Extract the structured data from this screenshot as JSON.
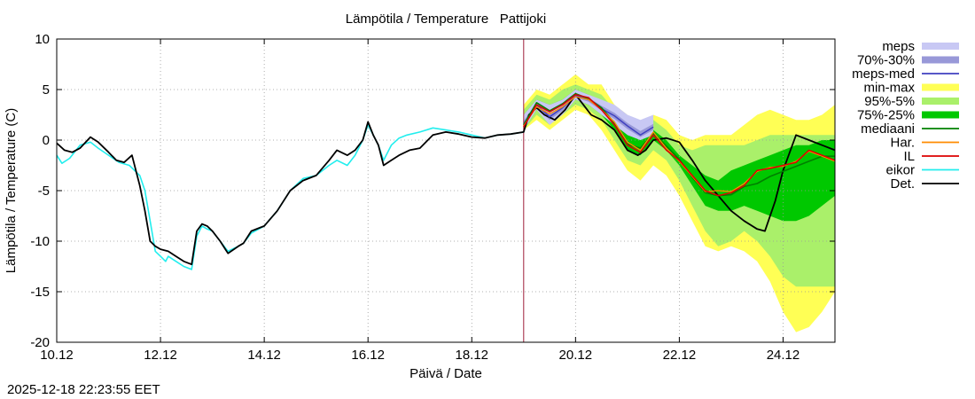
{
  "timestamp": "2025-12-18 22:23:55 EET",
  "chart_data": {
    "type": "line",
    "title": "Lämpötila / Temperature   Pattijoki",
    "xlabel": "Päivä / Date",
    "ylabel": "Lämpötila / Temperature (C)",
    "xlim": [
      0,
      15
    ],
    "ylim": [
      -20,
      10
    ],
    "grid": true,
    "legend_position": "right",
    "x_unit": "days since 10.12 00:00",
    "forecast_start_x": 9.0,
    "x_ticks": [
      {
        "x": 0,
        "label": "10.12"
      },
      {
        "x": 2,
        "label": "12.12"
      },
      {
        "x": 4,
        "label": "14.12"
      },
      {
        "x": 6,
        "label": "16.12"
      },
      {
        "x": 8,
        "label": "18.12"
      },
      {
        "x": 10,
        "label": "20.12"
      },
      {
        "x": 12,
        "label": "22.12"
      },
      {
        "x": 14,
        "label": "24.12"
      }
    ],
    "y_ticks": [
      {
        "y": 10,
        "label": "10"
      },
      {
        "y": 5,
        "label": "5"
      },
      {
        "y": 0,
        "label": "0"
      },
      {
        "y": -5,
        "label": "-5"
      },
      {
        "y": -10,
        "label": "-10"
      },
      {
        "y": -15,
        "label": "-15"
      },
      {
        "y": -20,
        "label": "-20"
      }
    ],
    "legend": [
      {
        "label": "meps",
        "color": "#c8c8f4",
        "kind": "band"
      },
      {
        "label": "70%-30%",
        "color": "#9898d8",
        "kind": "band"
      },
      {
        "label": "meps-med",
        "color": "#4040c0",
        "kind": "line"
      },
      {
        "label": "min-max",
        "color": "#ffff55",
        "kind": "band"
      },
      {
        "label": "95%-5%",
        "color": "#aaf06a",
        "kind": "band"
      },
      {
        "label": "75%-25%",
        "color": "#00c800",
        "kind": "band"
      },
      {
        "label": "mediaani",
        "color": "#008000",
        "kind": "line"
      },
      {
        "label": "Har.",
        "color": "#ff8c00",
        "kind": "line"
      },
      {
        "label": "IL",
        "color": "#dd0000",
        "kind": "line"
      },
      {
        "label": "eikor",
        "color": "#22eeee",
        "kind": "line"
      },
      {
        "label": "Det.",
        "color": "#000000",
        "kind": "line"
      }
    ],
    "bands": [
      {
        "name": "min-max",
        "color": "#ffff55",
        "x": [
          9.0,
          9.25,
          9.5,
          9.75,
          10.0,
          10.25,
          10.5,
          10.75,
          11.0,
          11.25,
          11.5,
          11.75,
          12.0,
          12.25,
          12.5,
          12.75,
          13.0,
          13.25,
          13.5,
          13.75,
          14.0,
          14.25,
          14.5,
          14.75,
          15.0
        ],
        "low": [
          1.0,
          2.0,
          1.0,
          2.0,
          3.0,
          2.5,
          1.0,
          -1.0,
          -3.0,
          -4.0,
          -2.5,
          -3.5,
          -5.5,
          -8.0,
          -10.5,
          -11.0,
          -10.5,
          -11.0,
          -12.0,
          -14.0,
          -17.0,
          -19.0,
          -18.5,
          -17.0,
          -15.0
        ],
        "high": [
          3.5,
          5.0,
          4.5,
          5.5,
          6.5,
          5.5,
          5.5,
          3.5,
          2.5,
          1.0,
          2.5,
          2.0,
          0.5,
          0.0,
          0.5,
          0.5,
          0.5,
          1.5,
          2.5,
          3.0,
          2.5,
          2.0,
          2.0,
          2.5,
          3.5
        ]
      },
      {
        "name": "95%-5%",
        "color": "#aaf06a",
        "x": [
          9.0,
          9.25,
          9.5,
          9.75,
          10.0,
          10.25,
          10.5,
          10.75,
          11.0,
          11.25,
          11.5,
          11.75,
          12.0,
          12.25,
          12.5,
          12.75,
          13.0,
          13.25,
          13.5,
          13.75,
          14.0,
          14.25,
          14.5,
          14.75,
          15.0
        ],
        "low": [
          1.0,
          2.5,
          1.5,
          2.5,
          3.5,
          3.0,
          2.0,
          0.0,
          -2.0,
          -2.5,
          -1.0,
          -2.0,
          -4.0,
          -6.5,
          -9.0,
          -10.5,
          -10.0,
          -9.0,
          -10.0,
          -11.5,
          -13.5,
          -14.5,
          -14.5,
          -14.5,
          -14.5
        ],
        "high": [
          3.0,
          4.5,
          4.0,
          5.0,
          5.5,
          5.0,
          4.5,
          3.0,
          1.5,
          0.5,
          2.0,
          1.0,
          -0.5,
          -1.0,
          -0.5,
          -0.5,
          -0.5,
          -0.5,
          0.0,
          0.5,
          0.5,
          0.5,
          0.5,
          0.5,
          0.5
        ]
      },
      {
        "name": "75%-25%",
        "color": "#00c800",
        "x": [
          9.0,
          9.25,
          9.5,
          9.75,
          10.0,
          10.25,
          10.5,
          10.75,
          11.0,
          11.25,
          11.5,
          11.75,
          12.0,
          12.25,
          12.5,
          12.75,
          13.0,
          13.25,
          13.5,
          13.75,
          14.0,
          14.25,
          14.5,
          14.75,
          15.0
        ],
        "low": [
          1.0,
          3.0,
          2.0,
          3.0,
          4.0,
          3.5,
          2.5,
          1.0,
          -1.0,
          -1.5,
          0.0,
          -1.0,
          -2.5,
          -4.5,
          -6.5,
          -7.0,
          -7.0,
          -6.5,
          -7.0,
          -7.5,
          -8.0,
          -8.0,
          -7.5,
          -6.5,
          -5.5
        ],
        "high": [
          2.5,
          4.0,
          3.5,
          4.0,
          5.0,
          4.5,
          3.5,
          2.0,
          0.5,
          0.0,
          1.0,
          0.0,
          -1.5,
          -2.5,
          -3.5,
          -4.0,
          -3.0,
          -2.5,
          -2.0,
          -1.5,
          -1.0,
          -0.5,
          -0.5,
          0.0,
          0.0
        ]
      },
      {
        "name": "meps",
        "color": "#c8c8f4",
        "x": [
          9.0,
          9.25,
          9.5,
          9.75,
          10.0,
          10.25,
          10.5,
          10.75,
          11.0,
          11.25,
          11.5
        ],
        "low": [
          1.0,
          3.0,
          1.5,
          2.5,
          4.0,
          3.5,
          2.5,
          1.5,
          0.5,
          0.0,
          0.5
        ],
        "high": [
          2.5,
          4.0,
          3.5,
          4.0,
          5.0,
          4.5,
          4.0,
          3.5,
          2.5,
          2.0,
          2.5
        ]
      },
      {
        "name": "70%-30%",
        "color": "#9898d8",
        "x": [
          9.0,
          9.25,
          9.5,
          9.75,
          10.0,
          10.25,
          10.5,
          10.75,
          11.0,
          11.25,
          11.5
        ],
        "low": [
          1.3,
          3.2,
          2.0,
          2.9,
          4.2,
          3.8,
          2.9,
          2.1,
          1.1,
          0.3,
          1.0
        ],
        "high": [
          1.9,
          3.7,
          2.6,
          3.4,
          4.6,
          4.2,
          3.4,
          2.7,
          1.7,
          0.9,
          1.6
        ]
      }
    ],
    "series": [
      {
        "name": "eikor",
        "color": "#22eeee",
        "width": 1.6,
        "x": [
          0.0,
          0.1,
          0.25,
          0.45,
          0.65,
          0.8,
          1.0,
          1.2,
          1.4,
          1.6,
          1.7,
          1.8,
          1.9,
          2.0,
          2.1,
          2.15,
          2.3,
          2.45,
          2.6,
          2.7,
          2.8,
          2.9,
          3.0,
          3.15,
          3.3,
          3.5,
          3.6,
          3.75,
          4.0,
          4.25,
          4.5,
          4.75,
          5.0,
          5.25,
          5.4,
          5.6,
          5.75,
          5.9,
          6.0,
          6.1,
          6.2,
          6.3,
          6.45,
          6.6,
          6.75,
          7.0,
          7.25,
          7.5,
          7.75,
          8.0,
          8.25,
          8.5,
          8.75,
          9.0
        ],
        "y": [
          -1.5,
          -2.3,
          -1.8,
          -0.5,
          -0.2,
          -0.8,
          -1.5,
          -2.2,
          -2.5,
          -3.5,
          -5.0,
          -8.0,
          -11.0,
          -11.5,
          -12.0,
          -11.5,
          -12.0,
          -12.5,
          -12.8,
          -9.5,
          -8.5,
          -8.8,
          -9.0,
          -10.0,
          -11.0,
          -10.5,
          -10.2,
          -9.2,
          -8.5,
          -7.0,
          -5.0,
          -3.8,
          -3.5,
          -2.5,
          -2.0,
          -2.5,
          -1.5,
          0.0,
          1.5,
          0.5,
          -0.5,
          -2.0,
          -0.5,
          0.2,
          0.5,
          0.8,
          1.2,
          1.0,
          0.8,
          0.5,
          0.2,
          0.5,
          0.6,
          0.8
        ]
      },
      {
        "name": "Det.",
        "color": "#000000",
        "width": 1.8,
        "x": [
          0.0,
          0.15,
          0.3,
          0.45,
          0.65,
          0.8,
          1.0,
          1.15,
          1.3,
          1.45,
          1.6,
          1.7,
          1.8,
          1.9,
          2.0,
          2.15,
          2.3,
          2.45,
          2.6,
          2.7,
          2.8,
          2.9,
          3.0,
          3.15,
          3.3,
          3.5,
          3.6,
          3.75,
          4.0,
          4.25,
          4.5,
          4.75,
          5.0,
          5.25,
          5.4,
          5.6,
          5.75,
          5.9,
          6.0,
          6.1,
          6.2,
          6.3,
          6.45,
          6.6,
          6.8,
          7.0,
          7.25,
          7.5,
          7.75,
          8.0,
          8.25,
          8.5,
          8.75,
          9.0,
          9.1,
          9.25,
          9.4,
          9.6,
          9.8,
          10.0,
          10.15,
          10.3,
          10.5,
          10.75,
          11.0,
          11.2,
          11.35,
          11.5,
          11.75,
          12.0,
          12.25,
          12.5,
          12.75,
          13.0,
          13.25,
          13.5,
          13.65,
          13.85,
          14.0,
          14.25,
          14.5,
          14.75,
          15.0
        ],
        "y": [
          -0.3,
          -1.0,
          -1.2,
          -0.8,
          0.3,
          -0.2,
          -1.2,
          -2.0,
          -2.2,
          -1.5,
          -4.5,
          -7.0,
          -10.0,
          -10.5,
          -10.8,
          -11.0,
          -11.5,
          -12.0,
          -12.3,
          -9.0,
          -8.3,
          -8.5,
          -9.0,
          -10.0,
          -11.2,
          -10.5,
          -10.2,
          -9.0,
          -8.5,
          -7.0,
          -5.0,
          -4.0,
          -3.5,
          -2.0,
          -1.0,
          -1.5,
          -1.0,
          0.0,
          1.8,
          0.5,
          -0.5,
          -2.5,
          -2.0,
          -1.5,
          -1.0,
          -0.8,
          0.5,
          0.8,
          0.6,
          0.3,
          0.2,
          0.5,
          0.6,
          0.8,
          2.5,
          3.2,
          2.5,
          2.0,
          3.0,
          4.5,
          3.5,
          2.5,
          2.0,
          1.0,
          -1.0,
          -1.5,
          -1.0,
          0.0,
          0.2,
          -0.2,
          -2.0,
          -4.0,
          -5.5,
          -7.0,
          -8.0,
          -8.8,
          -9.0,
          -6.0,
          -3.0,
          0.5,
          0.0,
          -0.5,
          -1.0
        ]
      },
      {
        "name": "meps-med",
        "color": "#4040c0",
        "width": 1.5,
        "x": [
          9.0,
          9.25,
          9.5,
          9.75,
          10.0,
          10.25,
          10.5,
          10.75,
          11.0,
          11.25,
          11.5
        ],
        "y": [
          1.6,
          3.5,
          2.3,
          3.2,
          4.4,
          4.0,
          3.1,
          2.4,
          1.4,
          0.5,
          1.3
        ]
      },
      {
        "name": "mediaani",
        "color": "#008000",
        "width": 1.6,
        "x": [
          9.0,
          9.25,
          9.5,
          9.75,
          10.0,
          10.25,
          10.5,
          10.75,
          11.0,
          11.25,
          11.5,
          11.75,
          12.0,
          12.25,
          12.5,
          12.75,
          13.0,
          13.25,
          13.5,
          13.75,
          14.0,
          14.25,
          14.5,
          14.75,
          15.0
        ],
        "y": [
          1.5,
          3.7,
          2.9,
          3.6,
          4.6,
          4.1,
          3.2,
          1.7,
          -0.4,
          -0.8,
          0.7,
          -0.6,
          -1.9,
          -3.7,
          -5.2,
          -5.5,
          -5.4,
          -4.6,
          -4.3,
          -3.6,
          -3.1,
          -2.6,
          -2.1,
          -1.6,
          -1.6
        ]
      },
      {
        "name": "Har.",
        "color": "#ff8c00",
        "width": 1.3,
        "x": [
          9.0,
          9.25,
          9.5,
          9.75,
          10.0,
          10.25,
          10.5,
          10.75,
          11.0,
          11.25,
          11.5,
          11.75,
          12.0,
          12.25,
          12.5,
          12.75,
          13.0,
          13.25,
          13.5,
          13.75,
          14.0,
          14.25,
          14.5,
          14.75,
          15.0
        ],
        "y": [
          1.4,
          3.3,
          2.6,
          3.3,
          4.3,
          4.0,
          3.0,
          1.8,
          -0.2,
          -1.0,
          0.8,
          -0.8,
          -2.1,
          -3.6,
          -5.1,
          -5.0,
          -5.1,
          -4.3,
          -3.1,
          -2.7,
          -2.6,
          -2.1,
          -1.1,
          -1.6,
          -2.1
        ]
      },
      {
        "name": "IL",
        "color": "#dd0000",
        "width": 1.5,
        "x": [
          9.0,
          9.25,
          9.5,
          9.75,
          10.0,
          10.25,
          10.5,
          10.75,
          11.0,
          11.25,
          11.5,
          11.75,
          12.0,
          12.25,
          12.5,
          12.75,
          13.0,
          13.25,
          13.5,
          13.75,
          14.0,
          14.25,
          14.5,
          14.75,
          15.0
        ],
        "y": [
          1.3,
          3.5,
          2.8,
          3.5,
          4.5,
          4.2,
          3.0,
          1.5,
          -0.5,
          -1.2,
          0.5,
          -1.0,
          -2.0,
          -3.5,
          -5.0,
          -5.5,
          -5.2,
          -4.5,
          -3.0,
          -2.8,
          -2.5,
          -2.2,
          -1.0,
          -1.5,
          -2.0
        ]
      }
    ]
  }
}
